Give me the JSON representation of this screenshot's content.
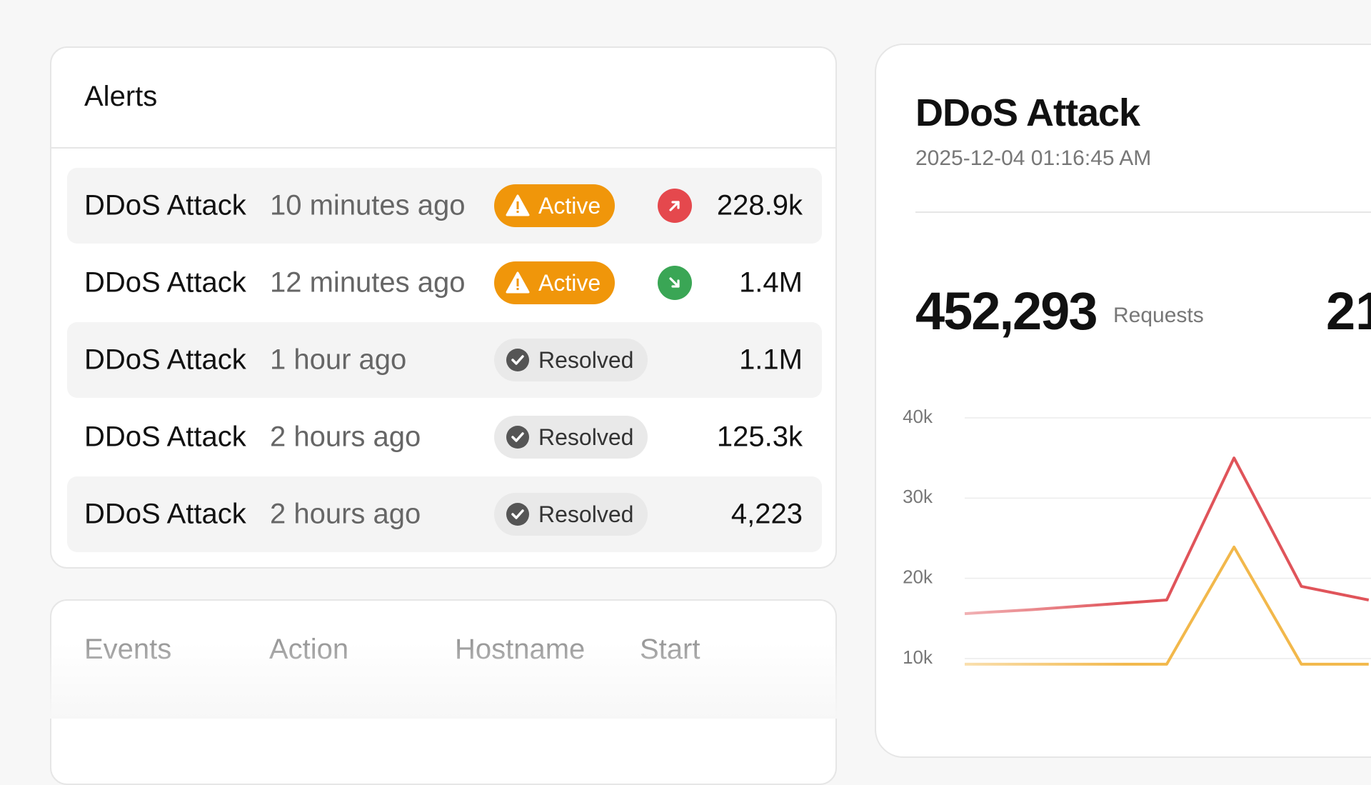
{
  "alerts": {
    "title": "Alerts",
    "rows": [
      {
        "name": "DDoS Attack",
        "time": "10 minutes ago",
        "status": "Active",
        "trend": "up",
        "value": "228.9k"
      },
      {
        "name": "DDoS Attack",
        "time": "12 minutes ago",
        "status": "Active",
        "trend": "down",
        "value": "1.4M"
      },
      {
        "name": "DDoS Attack",
        "time": "1 hour ago",
        "status": "Resolved",
        "trend": null,
        "value": "1.1M"
      },
      {
        "name": "DDoS Attack",
        "time": "2 hours ago",
        "status": "Resolved",
        "trend": null,
        "value": "125.3k"
      },
      {
        "name": "DDoS Attack",
        "time": "2 hours ago",
        "status": "Resolved",
        "trend": null,
        "value": "4,223"
      }
    ]
  },
  "events_table": {
    "headers": [
      "Events",
      "Action",
      "Hostname",
      "Start"
    ]
  },
  "detail": {
    "title": "DDoS Attack",
    "timestamp": "2025-12-04 01:16:45 AM",
    "metric": "452,293",
    "metric_label": "Requests",
    "metric2": "21"
  },
  "chart_data": {
    "type": "line",
    "categories": [
      null,
      null,
      null,
      null,
      null,
      null,
      null
    ],
    "series": [
      {
        "color": "#e0545a",
        "values": [
          15600,
          16100,
          16700,
          17300,
          35000,
          19000,
          17300
        ]
      },
      {
        "color": "#f2b84b",
        "values": [
          9300,
          9300,
          9300,
          9300,
          23900,
          9300,
          9300
        ]
      }
    ],
    "ylim": [
      5000,
      40000
    ],
    "yticks": [
      {
        "value": 40000,
        "label": "40k"
      },
      {
        "value": 30000,
        "label": "30k"
      },
      {
        "value": 20000,
        "label": "20k"
      },
      {
        "value": 10000,
        "label": "10k"
      }
    ],
    "grid": true
  }
}
